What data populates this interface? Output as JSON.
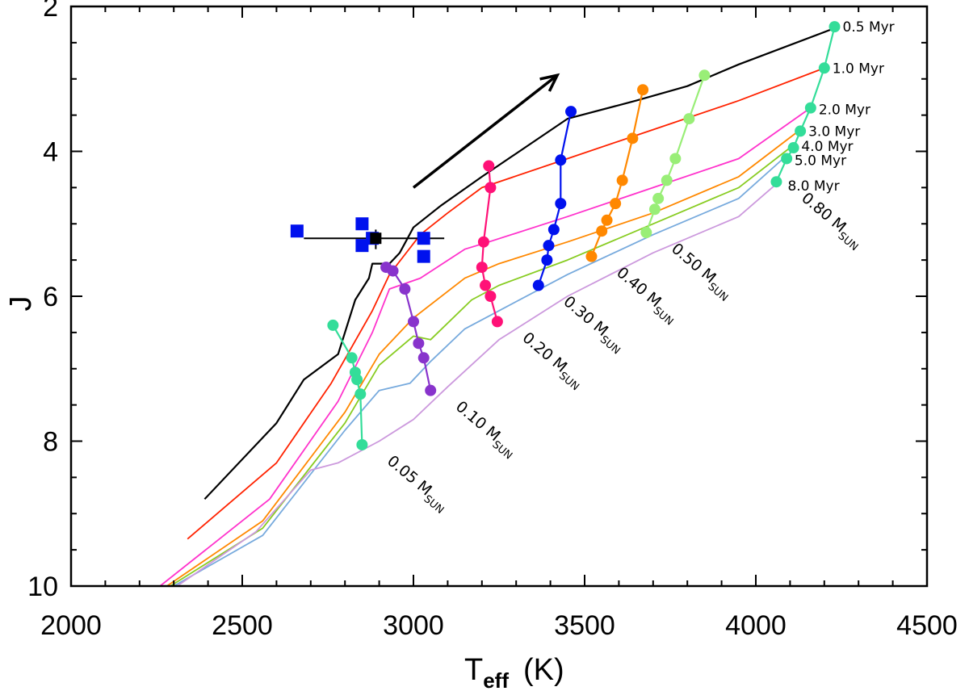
{
  "chart_data": {
    "type": "scatter",
    "xlabel": "T",
    "xlabel_sub": "eff",
    "xlabel_unit": "(K)",
    "ylabel": "J",
    "xlim": [
      2000,
      4500
    ],
    "ylim": [
      10,
      2
    ],
    "y_inverted": true,
    "x_ticks": [
      "2000",
      "2500",
      "3000",
      "3500",
      "4000",
      "4500"
    ],
    "y_ticks": [
      "2",
      "4",
      "6",
      "8",
      "10"
    ],
    "grid": false,
    "isochrones": [
      {
        "label": "0.5 Myr",
        "color": "#000000",
        "points": [
          [
            2390,
            8.8
          ],
          [
            2600,
            7.75
          ],
          [
            2680,
            7.15
          ],
          [
            2780,
            6.8
          ],
          [
            2830,
            6.05
          ],
          [
            2870,
            5.75
          ],
          [
            2880,
            5.55
          ],
          [
            2930,
            5.55
          ],
          [
            2960,
            5.4
          ],
          [
            3000,
            5.05
          ],
          [
            3080,
            4.75
          ],
          [
            3200,
            4.35
          ],
          [
            3450,
            3.55
          ],
          [
            3650,
            3.3
          ],
          [
            3800,
            3.1
          ],
          [
            3950,
            2.8
          ],
          [
            4230,
            2.3
          ]
        ]
      },
      {
        "label": "1.0 Myr",
        "color": "#ff2200",
        "points": [
          [
            2340,
            9.35
          ],
          [
            2600,
            8.3
          ],
          [
            2760,
            7.2
          ],
          [
            2880,
            6.2
          ],
          [
            2930,
            5.7
          ],
          [
            3020,
            5.15
          ],
          [
            3100,
            4.85
          ],
          [
            3200,
            4.5
          ],
          [
            3450,
            4.1
          ],
          [
            3700,
            3.7
          ],
          [
            3950,
            3.3
          ],
          [
            4200,
            2.85
          ]
        ]
      },
      {
        "label": "2.0 Myr",
        "color": "#ff33cc",
        "points": [
          [
            2260,
            10.0
          ],
          [
            2580,
            8.8
          ],
          [
            2780,
            7.45
          ],
          [
            2880,
            6.5
          ],
          [
            2930,
            5.9
          ],
          [
            3020,
            5.75
          ],
          [
            3150,
            5.35
          ],
          [
            3220,
            5.25
          ],
          [
            3450,
            4.9
          ],
          [
            3700,
            4.5
          ],
          [
            3950,
            4.1
          ],
          [
            4160,
            3.4
          ]
        ]
      },
      {
        "label": "3.0 Myr",
        "color": "#ff8800",
        "points": [
          [
            2280,
            10.0
          ],
          [
            2560,
            9.1
          ],
          [
            2800,
            7.6
          ],
          [
            2900,
            6.8
          ],
          [
            3000,
            6.3
          ],
          [
            3150,
            5.75
          ],
          [
            3250,
            5.55
          ],
          [
            3450,
            5.25
          ],
          [
            3700,
            4.85
          ],
          [
            3950,
            4.35
          ],
          [
            4130,
            3.7
          ]
        ]
      },
      {
        "label": "4.0 Myr",
        "color": "#88cc22",
        "points": [
          [
            2290,
            10.0
          ],
          [
            2560,
            9.2
          ],
          [
            2800,
            7.75
          ],
          [
            2900,
            6.95
          ],
          [
            3000,
            6.55
          ],
          [
            3050,
            6.6
          ],
          [
            3170,
            6.05
          ],
          [
            3250,
            5.85
          ],
          [
            3450,
            5.5
          ],
          [
            3700,
            5.0
          ],
          [
            3950,
            4.5
          ],
          [
            4100,
            3.95
          ]
        ]
      },
      {
        "label": "5.0 Myr",
        "color": "#77aadd",
        "points": [
          [
            2300,
            10.0
          ],
          [
            2560,
            9.3
          ],
          [
            2800,
            7.85
          ],
          [
            2900,
            7.3
          ],
          [
            2990,
            7.2
          ],
          [
            3050,
            6.9
          ],
          [
            3150,
            6.45
          ],
          [
            3250,
            6.2
          ],
          [
            3450,
            5.7
          ],
          [
            3700,
            5.15
          ],
          [
            3950,
            4.65
          ],
          [
            4080,
            4.1
          ]
        ]
      },
      {
        "label": "8.0 Myr",
        "color": "#cc99dd",
        "points": [
          [
            2310,
            10.0
          ],
          [
            2540,
            9.25
          ],
          [
            2700,
            8.4
          ],
          [
            2780,
            8.3
          ],
          [
            2900,
            8.0
          ],
          [
            3000,
            7.7
          ],
          [
            3100,
            7.25
          ],
          [
            3250,
            6.6
          ],
          [
            3450,
            6.0
          ],
          [
            3700,
            5.4
          ],
          [
            3950,
            4.9
          ],
          [
            4060,
            4.45
          ]
        ]
      }
    ],
    "mass_tracks": [
      {
        "label": "0.05",
        "color": "#33dd99",
        "points": [
          [
            2765,
            6.4
          ],
          [
            2820,
            6.85
          ],
          [
            2830,
            7.05
          ],
          [
            2835,
            7.15
          ],
          [
            2845,
            7.35
          ],
          [
            2850,
            8.05
          ]
        ]
      },
      {
        "label": "0.10",
        "color": "#8833cc",
        "points": [
          [
            2920,
            5.6
          ],
          [
            2940,
            5.65
          ],
          [
            2975,
            5.9
          ],
          [
            3000,
            6.35
          ],
          [
            3015,
            6.65
          ],
          [
            3030,
            6.85
          ],
          [
            3050,
            7.3
          ]
        ]
      },
      {
        "label": "0.20",
        "color": "#ff1177",
        "points": [
          [
            3220,
            4.2
          ],
          [
            3225,
            4.5
          ],
          [
            3205,
            5.25
          ],
          [
            3200,
            5.6
          ],
          [
            3210,
            5.85
          ],
          [
            3225,
            6.0
          ],
          [
            3245,
            6.35
          ]
        ]
      },
      {
        "label": "0.30",
        "color": "#0011ee",
        "points": [
          [
            3460,
            3.45
          ],
          [
            3430,
            4.12
          ],
          [
            3430,
            4.72
          ],
          [
            3410,
            5.08
          ],
          [
            3395,
            5.3
          ],
          [
            3390,
            5.5
          ],
          [
            3365,
            5.85
          ]
        ]
      },
      {
        "label": "0.40",
        "color": "#ff8800",
        "points": [
          [
            3670,
            3.15
          ],
          [
            3640,
            3.82
          ],
          [
            3610,
            4.4
          ],
          [
            3590,
            4.72
          ],
          [
            3565,
            4.95
          ],
          [
            3550,
            5.1
          ],
          [
            3520,
            5.45
          ]
        ]
      },
      {
        "label": "0.50",
        "color": "#99ee77",
        "points": [
          [
            3850,
            2.95
          ],
          [
            3805,
            3.55
          ],
          [
            3765,
            4.1
          ],
          [
            3740,
            4.4
          ],
          [
            3715,
            4.65
          ],
          [
            3705,
            4.8
          ],
          [
            3680,
            5.12
          ]
        ]
      },
      {
        "label": "0.80",
        "color": "#33dd99",
        "points": [
          [
            4230,
            2.28
          ],
          [
            4200,
            2.85
          ],
          [
            4160,
            3.4
          ],
          [
            4130,
            3.72
          ],
          [
            4110,
            3.95
          ],
          [
            4090,
            4.1
          ],
          [
            4060,
            4.42
          ]
        ]
      }
    ],
    "age_labels": [
      "0.5  Myr",
      "1.0  Myr",
      "2.0  Myr",
      "3.0  Myr",
      "4.0  Myr",
      "5.0  Myr",
      "8.0  Myr"
    ],
    "mass_labels": [
      "0.05 M",
      "0.10 M",
      "0.20 M",
      "0.30 M",
      "0.40 M",
      "0.50 M",
      "0.80 M"
    ],
    "mass_label_sub": "SUN",
    "observed_points": {
      "color": "#0011ee",
      "points": [
        [
          2660,
          5.1
        ],
        [
          2850,
          5.0
        ],
        [
          2850,
          5.3
        ],
        [
          2880,
          5.2
        ],
        [
          3030,
          5.2
        ],
        [
          3030,
          5.45
        ]
      ]
    },
    "mean_point": {
      "x": 2890,
      "y": 5.2,
      "xerr": [
        2680,
        3090
      ],
      "yerr": [
        5.08,
        5.35
      ],
      "color": "#000000"
    },
    "arrow": {
      "from": [
        3000,
        4.5
      ],
      "to": [
        3420,
        2.95
      ],
      "color": "#000000"
    }
  }
}
